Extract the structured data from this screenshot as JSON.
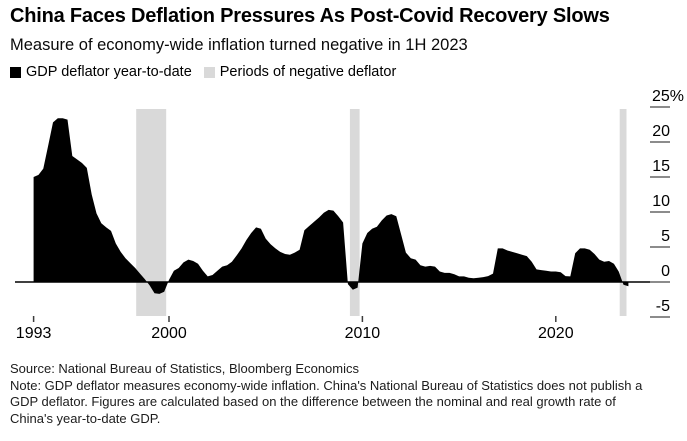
{
  "header": {
    "title": "China Faces Deflation Pressures As Post-Covid Recovery Slows",
    "subtitle": "Measure of economy-wide inflation turned negative in 1H 2023"
  },
  "legend": {
    "items": [
      {
        "label": "GDP deflator year-to-date",
        "swatch_color": "#000000"
      },
      {
        "label": "Periods of negative deflator",
        "swatch_color": "#d9d9d9"
      }
    ]
  },
  "chart_data": {
    "type": "area",
    "title": "China Faces Deflation Pressures As Post-Covid Recovery Slows",
    "subtitle": "Measure of economy-wide inflation turned negative in 1H 2023",
    "xlabel": "",
    "ylabel": "GDP deflator year-to-date (%)",
    "x_start": 1993,
    "x_step_years": 0.25,
    "series": [
      {
        "name": "GDP deflator year-to-date",
        "values": [
          15.0,
          15.3,
          16.2,
          19.5,
          22.8,
          23.4,
          23.4,
          23.2,
          18.0,
          17.5,
          17.0,
          16.3,
          12.5,
          9.8,
          8.4,
          7.8,
          7.3,
          5.5,
          4.3,
          3.4,
          2.7,
          2.0,
          1.2,
          0.4,
          -0.5,
          -1.6,
          -1.7,
          -1.4,
          0.3,
          1.6,
          2.0,
          2.8,
          3.2,
          3.0,
          2.6,
          1.6,
          0.8,
          1.0,
          1.6,
          2.2,
          2.4,
          2.9,
          3.8,
          4.8,
          6.0,
          7.0,
          7.8,
          7.6,
          6.2,
          5.4,
          4.8,
          4.3,
          4.0,
          3.9,
          4.2,
          4.6,
          7.4,
          8.0,
          8.6,
          9.2,
          9.9,
          10.3,
          10.2,
          9.4,
          8.5,
          -0.3,
          -1.1,
          -0.8,
          5.5,
          7.0,
          7.6,
          7.9,
          8.8,
          9.5,
          9.7,
          9.4,
          6.8,
          4.2,
          3.4,
          3.2,
          2.4,
          2.2,
          2.3,
          2.2,
          1.5,
          1.3,
          1.3,
          1.1,
          0.8,
          0.8,
          0.6,
          0.55,
          0.6,
          0.7,
          0.85,
          1.2,
          4.8,
          4.8,
          4.5,
          4.3,
          4.1,
          3.9,
          3.7,
          2.9,
          1.8,
          1.7,
          1.6,
          1.5,
          1.5,
          1.4,
          0.85,
          0.8,
          4.1,
          4.8,
          4.8,
          4.6,
          4.0,
          3.2,
          2.9,
          3.0,
          2.6,
          1.5,
          -0.4,
          -0.6
        ]
      }
    ],
    "negative_bands": [
      [
        1998.3,
        1999.85
      ],
      [
        2009.35,
        2009.85
      ],
      [
        2023.3,
        2023.65
      ]
    ],
    "x_ticks": [
      1993,
      2000,
      2010,
      2020
    ],
    "y_ticks": [
      25,
      20,
      15,
      10,
      5,
      0,
      -5
    ],
    "y_unit_suffix": "%",
    "xlim": [
      1992.9,
      2024.2
    ],
    "ylim": [
      -5,
      25
    ],
    "grid": false,
    "legend_position": "top-left",
    "y_axis_position": "right",
    "area_color": "#000000",
    "band_color": "#d9d9d9",
    "tick_dash_color": "#8c8c8c",
    "x_tick_color": "#3c3c3c",
    "zero_line_color": "#000000"
  },
  "footer": {
    "source": "Source: National Bureau of Statistics, Bloomberg Economics",
    "note": "Note: GDP deflator measures economy-wide inflation. China's National Bureau of Statistics does not publish a GDP deflator. Figures are calculated based on the difference between the nominal and real growth rate of China's year-to-date GDP."
  }
}
